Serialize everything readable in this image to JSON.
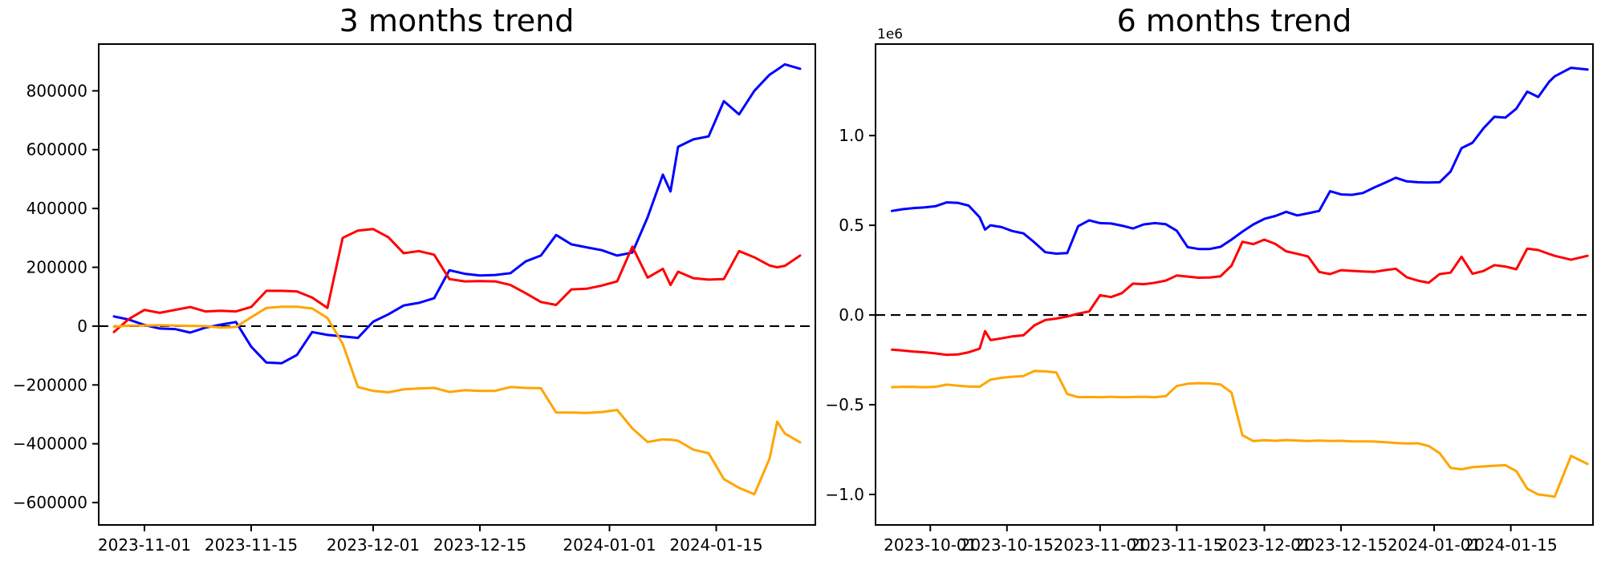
{
  "figure": {
    "background": "#ffffff",
    "text_color": "#000000"
  },
  "chart_data": [
    {
      "type": "line",
      "title": "3 months trend",
      "xlabel": "",
      "ylabel": "",
      "grid": false,
      "legend": null,
      "x_domain": [
        "2023-10-26",
        "2024-01-28"
      ],
      "ylim": [
        -676000,
        959000
      ],
      "zero_line": {
        "style": "dashed",
        "color": "#000000",
        "value": 0
      },
      "x_ticks": [
        "2023-11-01",
        "2023-11-15",
        "2023-12-01",
        "2023-12-15",
        "2024-01-01",
        "2024-01-15"
      ],
      "y_ticks": [
        {
          "value": 800000,
          "label": "800000"
        },
        {
          "value": 600000,
          "label": "600000"
        },
        {
          "value": 400000,
          "label": "400000"
        },
        {
          "value": 200000,
          "label": "200000"
        },
        {
          "value": 0,
          "label": "0"
        },
        {
          "value": -200000,
          "label": "−200000"
        },
        {
          "value": -400000,
          "label": "−400000"
        },
        {
          "value": -600000,
          "label": "−600000"
        }
      ],
      "x": [
        "2023-10-28",
        "2023-10-30",
        "2023-11-01",
        "2023-11-03",
        "2023-11-05",
        "2023-11-07",
        "2023-11-09",
        "2023-11-11",
        "2023-11-13",
        "2023-11-15",
        "2023-11-17",
        "2023-11-19",
        "2023-11-21",
        "2023-11-23",
        "2023-11-25",
        "2023-11-27",
        "2023-11-29",
        "2023-12-01",
        "2023-12-03",
        "2023-12-05",
        "2023-12-07",
        "2023-12-09",
        "2023-12-11",
        "2023-12-13",
        "2023-12-15",
        "2023-12-17",
        "2023-12-19",
        "2023-12-21",
        "2023-12-23",
        "2023-12-25",
        "2023-12-27",
        "2023-12-29",
        "2023-12-31",
        "2024-01-02",
        "2024-01-04",
        "2024-01-06",
        "2024-01-08",
        "2024-01-09",
        "2024-01-10",
        "2024-01-12",
        "2024-01-14",
        "2024-01-16",
        "2024-01-18",
        "2024-01-20",
        "2024-01-22",
        "2024-01-23",
        "2024-01-24",
        "2024-01-26"
      ],
      "series": [
        {
          "name": "blue-series",
          "color": "#0000ff",
          "values": [
            33000,
            22000,
            4000,
            -8000,
            -10000,
            -22000,
            -5000,
            5000,
            14000,
            -70000,
            -124000,
            -126000,
            -98000,
            -20000,
            -30000,
            -35000,
            -40000,
            15000,
            40000,
            70000,
            79000,
            95000,
            190000,
            178000,
            172000,
            174000,
            180000,
            220000,
            240000,
            310000,
            278000,
            268000,
            258000,
            240000,
            250000,
            370000,
            515000,
            458000,
            610000,
            635000,
            645000,
            765000,
            720000,
            800000,
            855000,
            872000,
            890000,
            875000
          ]
        },
        {
          "name": "red-series",
          "color": "#ff0000",
          "values": [
            -20000,
            25000,
            55000,
            45000,
            55000,
            65000,
            50000,
            52000,
            50000,
            65000,
            120000,
            120000,
            118000,
            97000,
            62000,
            300000,
            325000,
            330000,
            302000,
            248000,
            255000,
            243000,
            160000,
            152000,
            153000,
            152000,
            140000,
            112000,
            82000,
            72000,
            125000,
            127000,
            138000,
            152000,
            270000,
            165000,
            195000,
            140000,
            185000,
            163000,
            158000,
            160000,
            255000,
            234000,
            206000,
            200000,
            205000,
            240000
          ]
        },
        {
          "name": "orange-series",
          "color": "#ffa500",
          "values": [
            -2000,
            2000,
            2000,
            3000,
            2000,
            1000,
            0,
            -5000,
            -3000,
            30000,
            62000,
            66000,
            66000,
            60000,
            28000,
            -60000,
            -207000,
            -220000,
            -225000,
            -215000,
            -212000,
            -210000,
            -224000,
            -218000,
            -220000,
            -220000,
            -207000,
            -210000,
            -211000,
            -294000,
            -294000,
            -295000,
            -292000,
            -285000,
            -348000,
            -394000,
            -385000,
            -386000,
            -390000,
            -420000,
            -432000,
            -520000,
            -550000,
            -572000,
            -450000,
            -325000,
            -365000,
            -395000
          ]
        }
      ]
    },
    {
      "type": "line",
      "title": "6 months trend",
      "xlabel": "",
      "ylabel": "",
      "grid": false,
      "legend": null,
      "offset_text": "1e6",
      "x_domain": [
        "2023-09-21",
        "2024-01-30"
      ],
      "ylim": [
        -1170000,
        1510000
      ],
      "zero_line": {
        "style": "dashed",
        "color": "#000000",
        "value": 0
      },
      "x_ticks": [
        "2023-10-01",
        "2023-10-15",
        "2023-11-01",
        "2023-11-15",
        "2023-12-01",
        "2023-12-15",
        "2024-01-01",
        "2024-01-15"
      ],
      "y_ticks": [
        {
          "value": 1000000,
          "label": "1.0"
        },
        {
          "value": 500000,
          "label": "0.5"
        },
        {
          "value": 0,
          "label": "0.0"
        },
        {
          "value": -500000,
          "label": "−0.5"
        },
        {
          "value": -1000000,
          "label": "−1.0"
        }
      ],
      "x": [
        "2023-09-24",
        "2023-09-26",
        "2023-09-28",
        "2023-09-30",
        "2023-10-02",
        "2023-10-04",
        "2023-10-06",
        "2023-10-08",
        "2023-10-10",
        "2023-10-11",
        "2023-10-12",
        "2023-10-14",
        "2023-10-16",
        "2023-10-18",
        "2023-10-20",
        "2023-10-22",
        "2023-10-24",
        "2023-10-26",
        "2023-10-28",
        "2023-10-30",
        "2023-11-01",
        "2023-11-03",
        "2023-11-05",
        "2023-11-07",
        "2023-11-09",
        "2023-11-11",
        "2023-11-13",
        "2023-11-15",
        "2023-11-17",
        "2023-11-19",
        "2023-11-21",
        "2023-11-23",
        "2023-11-25",
        "2023-11-27",
        "2023-11-29",
        "2023-12-01",
        "2023-12-03",
        "2023-12-05",
        "2023-12-07",
        "2023-12-09",
        "2023-12-11",
        "2023-12-13",
        "2023-12-15",
        "2023-12-17",
        "2023-12-19",
        "2023-12-21",
        "2023-12-23",
        "2023-12-25",
        "2023-12-27",
        "2023-12-29",
        "2023-12-31",
        "2024-01-02",
        "2024-01-04",
        "2024-01-06",
        "2024-01-08",
        "2024-01-10",
        "2024-01-12",
        "2024-01-14",
        "2024-01-16",
        "2024-01-18",
        "2024-01-20",
        "2024-01-22",
        "2024-01-23",
        "2024-01-26",
        "2024-01-29"
      ],
      "series": [
        {
          "name": "blue-series",
          "color": "#0000ff",
          "values": [
            580000,
            590000,
            596000,
            600000,
            607000,
            628000,
            625000,
            610000,
            545000,
            476000,
            500000,
            490000,
            468000,
            455000,
            405000,
            350000,
            342000,
            345000,
            495000,
            528000,
            512000,
            510000,
            498000,
            482000,
            505000,
            512000,
            506000,
            470000,
            378000,
            368000,
            368000,
            380000,
            420000,
            465000,
            505000,
            536000,
            552000,
            575000,
            555000,
            567000,
            580000,
            690000,
            672000,
            670000,
            680000,
            710000,
            737000,
            765000,
            745000,
            740000,
            738000,
            740000,
            800000,
            930000,
            960000,
            1040000,
            1105000,
            1100000,
            1150000,
            1245000,
            1215000,
            1300000,
            1330000,
            1378000,
            1368000
          ]
        },
        {
          "name": "red-series",
          "color": "#ff0000",
          "values": [
            -193000,
            -198000,
            -204000,
            -208000,
            -214000,
            -222000,
            -220000,
            -208000,
            -188000,
            -90000,
            -140000,
            -130000,
            -119000,
            -113000,
            -58000,
            -28000,
            -20000,
            -8000,
            8000,
            20000,
            110000,
            100000,
            122000,
            175000,
            172000,
            180000,
            192000,
            220000,
            214000,
            208000,
            209000,
            216000,
            275000,
            408000,
            395000,
            420000,
            396000,
            355000,
            341000,
            326000,
            240000,
            228000,
            250000,
            246000,
            243000,
            240000,
            250000,
            258000,
            210000,
            192000,
            180000,
            228000,
            236000,
            325000,
            230000,
            245000,
            278000,
            270000,
            255000,
            370000,
            362000,
            340000,
            330000,
            308000,
            330000
          ]
        },
        {
          "name": "orange-series",
          "color": "#ffa500",
          "values": [
            -402000,
            -400000,
            -401000,
            -402000,
            -400000,
            -388000,
            -394000,
            -398000,
            -400000,
            -380000,
            -360000,
            -350000,
            -344000,
            -340000,
            -312000,
            -314000,
            -320000,
            -440000,
            -458000,
            -457000,
            -458000,
            -456000,
            -458000,
            -457000,
            -456000,
            -458000,
            -452000,
            -396000,
            -383000,
            -380000,
            -381000,
            -387000,
            -432000,
            -670000,
            -703000,
            -698000,
            -701000,
            -697000,
            -700000,
            -702000,
            -700000,
            -702000,
            -701000,
            -704000,
            -704000,
            -705000,
            -709000,
            -713000,
            -716000,
            -715000,
            -730000,
            -770000,
            -852000,
            -860000,
            -848000,
            -844000,
            -840000,
            -837000,
            -870000,
            -968000,
            -1000000,
            -1008000,
            -1013000,
            -785000,
            -830000
          ]
        }
      ]
    }
  ]
}
